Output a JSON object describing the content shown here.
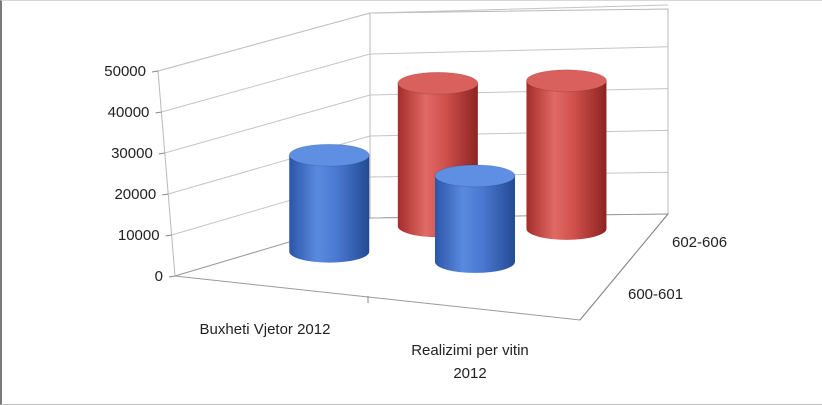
{
  "chart_data": {
    "type": "bar",
    "subtype": "3d-cylinder",
    "categories": [
      "Buxheti Vjetor 2012",
      "Realizimi per vitin 2012"
    ],
    "series": [
      {
        "name": "600-601",
        "values": [
          28000,
          25000
        ]
      },
      {
        "name": "602-606",
        "values": [
          41500,
          43000
        ]
      }
    ],
    "ylim": [
      0,
      50000
    ],
    "yticks": [
      "0",
      "10000",
      "20000",
      "30000",
      "40000",
      "50000"
    ],
    "grid": true,
    "legend": "none",
    "colors": {
      "600-601": "#4472c4",
      "602-606": "#c0504d"
    }
  }
}
